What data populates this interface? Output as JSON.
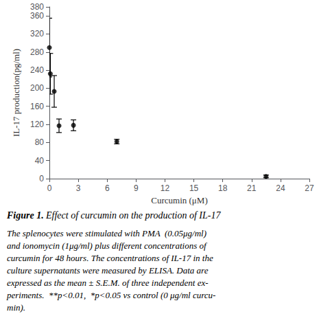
{
  "chart_data": {
    "type": "scatter",
    "title": "Figure 1.",
    "subtitle": "Effect of curcumin on the production of IL-17",
    "annotations": [
      "The splenocytes were stimulated with PMA  (0.05μg/ml)",
      "and ionomycin (1μg/ml) plus different concentrations of",
      "curcumin for 48 hours. The concentrations of IL-17 in the",
      "culture supernatants were measured by ELISA. Data are",
      "expressed as the mean ± S.E.M. of three independent ex-",
      "periments.  **p<0.01,  *p<0.05 vs control (0 μg/ml curcu-",
      "min)."
    ],
    "xlabel": "Curcumin (μM)",
    "ylabel": "IL-17 production(pg/ml)",
    "x": [
      0,
      0.1,
      0.5,
      1,
      2.5,
      7,
      22.5
    ],
    "values": [
      290,
      232,
      193,
      117,
      118,
      82,
      5
    ],
    "yerr": [
      65,
      45,
      35,
      15,
      12,
      5,
      3
    ],
    "xlim": [
      0,
      27
    ],
    "ylim": [
      0,
      380
    ],
    "xticks": [
      0,
      3,
      6,
      9,
      12,
      15,
      18,
      21,
      24,
      27
    ],
    "yticks": [
      0,
      40,
      80,
      120,
      160,
      200,
      240,
      280,
      320,
      360
    ],
    "color": "#000000",
    "marker": "circle",
    "grid": false
  }
}
